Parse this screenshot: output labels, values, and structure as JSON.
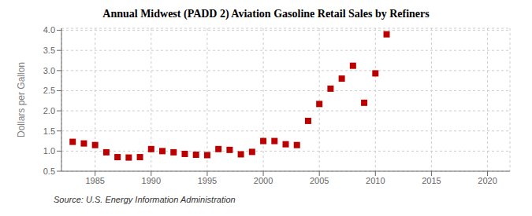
{
  "chart_data": {
    "type": "scatter",
    "title": "Annual Midwest (PADD 2) Aviation Gasoline Retail Sales by Refiners",
    "ylabel": "Dollars per Gallon",
    "annotation": "Source: U.S. Energy Information Administration",
    "x": [
      1983,
      1984,
      1985,
      1986,
      1987,
      1988,
      1989,
      1990,
      1991,
      1992,
      1993,
      1994,
      1995,
      1996,
      1997,
      1998,
      1999,
      2000,
      2001,
      2002,
      2003,
      2004,
      2005,
      2006,
      2007,
      2008,
      2009,
      2010,
      2011
    ],
    "values": [
      1.23,
      1.19,
      1.15,
      0.97,
      0.85,
      0.84,
      0.85,
      1.05,
      1.0,
      0.97,
      0.93,
      0.91,
      0.9,
      1.05,
      1.03,
      0.92,
      0.98,
      1.25,
      1.25,
      1.17,
      1.15,
      1.75,
      2.17,
      2.55,
      2.8,
      3.12,
      2.2,
      2.93,
      3.9
    ],
    "color": "#bb0000",
    "marker": "square",
    "xlim": [
      1982,
      2022
    ],
    "ylim": [
      0.5,
      4.05
    ],
    "xticks": [
      1985,
      1990,
      1995,
      2000,
      2005,
      2010,
      2015,
      2020
    ],
    "yticks": [
      0.5,
      {
        "value": 1,
        "label": "1.0"
      },
      1.5,
      {
        "value": 2,
        "label": "2.0"
      },
      2.5,
      {
        "value": 3,
        "label": "3.0"
      },
      3.5,
      {
        "value": 4,
        "label": "4.0"
      }
    ],
    "grid": true
  }
}
